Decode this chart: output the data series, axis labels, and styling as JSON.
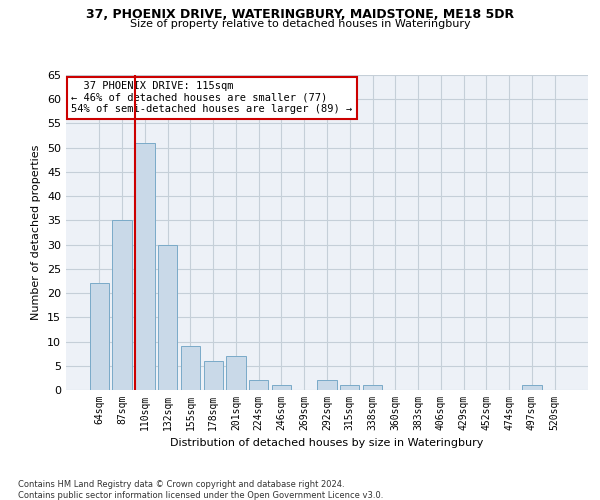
{
  "title_line1": "37, PHOENIX DRIVE, WATERINGBURY, MAIDSTONE, ME18 5DR",
  "title_line2": "Size of property relative to detached houses in Wateringbury",
  "xlabel": "Distribution of detached houses by size in Wateringbury",
  "ylabel": "Number of detached properties",
  "footnote": "Contains HM Land Registry data © Crown copyright and database right 2024.\nContains public sector information licensed under the Open Government Licence v3.0.",
  "categories": [
    "64sqm",
    "87sqm",
    "110sqm",
    "132sqm",
    "155sqm",
    "178sqm",
    "201sqm",
    "224sqm",
    "246sqm",
    "269sqm",
    "292sqm",
    "315sqm",
    "338sqm",
    "360sqm",
    "383sqm",
    "406sqm",
    "429sqm",
    "452sqm",
    "474sqm",
    "497sqm",
    "520sqm"
  ],
  "values": [
    22,
    35,
    51,
    30,
    9,
    6,
    7,
    2,
    1,
    0,
    2,
    1,
    1,
    0,
    0,
    0,
    0,
    0,
    0,
    1,
    0
  ],
  "bar_color": "#c9d9e8",
  "bar_edge_color": "#7aaac8",
  "grid_color": "#c5cfd8",
  "bg_color": "#edf1f7",
  "vline_color": "#cc0000",
  "annotation_text": "  37 PHOENIX DRIVE: 115sqm  \n← 46% of detached houses are smaller (77)\n54% of semi-detached houses are larger (89) →",
  "annotation_box_color": "#cc0000",
  "ylim": [
    0,
    65
  ],
  "yticks": [
    0,
    5,
    10,
    15,
    20,
    25,
    30,
    35,
    40,
    45,
    50,
    55,
    60,
    65
  ],
  "vline_index": 2
}
